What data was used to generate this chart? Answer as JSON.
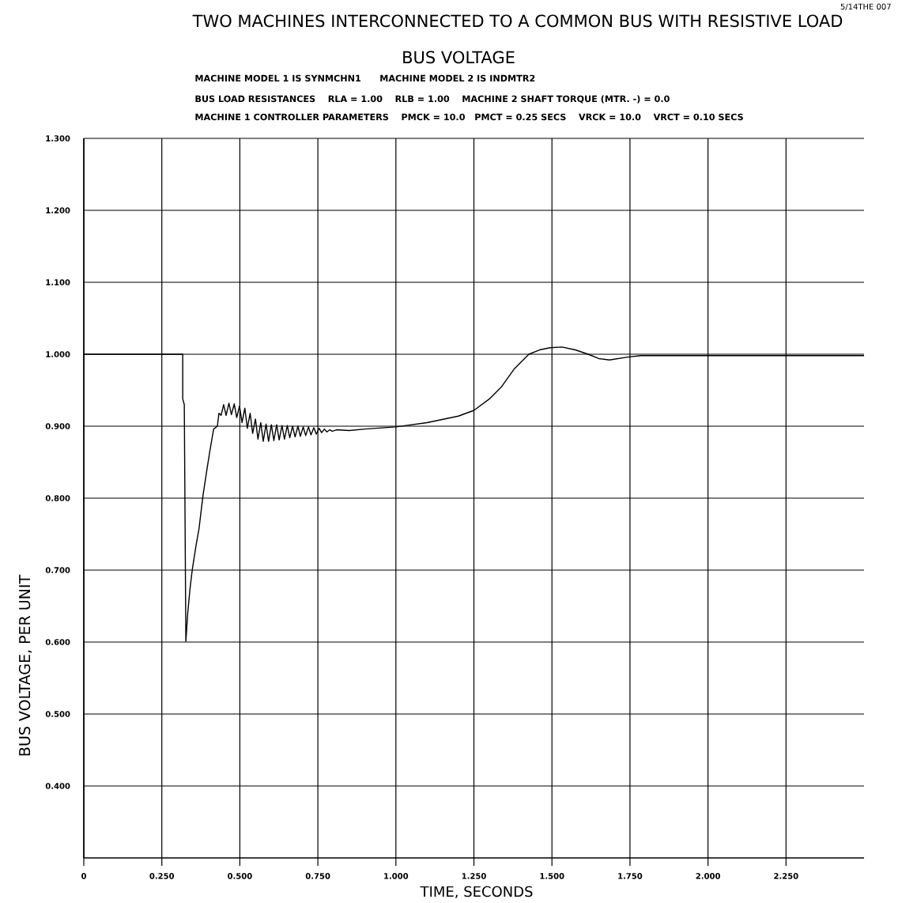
{
  "chart_data": {
    "type": "line",
    "title": "TWO MACHINES INTERCONNECTED TO A COMMON BUS WITH RESISTIVE LOAD",
    "subtitle": "BUS VOLTAGE",
    "annotations": [
      "MACHINE MODEL 1 IS SYNMCHN1      MACHINE MODEL 2 IS INDMTR2",
      "BUS LOAD RESISTANCES    RLA = 1.00    RLB = 1.00    MACHINE 2 SHAFT TORQUE (MTR. -) = 0.0",
      "MACHINE 1 CONTROLLER PARAMETERS    PMCK = 10.0   PMCT = 0.25 SECS    VRCK = 10.0    VRCT = 0.10 SECS",
      "5/14THE 007"
    ],
    "xlabel": "TIME, SECONDS",
    "ylabel": "BUS VOLTAGE, PER UNIT",
    "xlim": [
      0,
      2.5
    ],
    "ylim": [
      0.3,
      1.3
    ],
    "xticks": [
      {
        "value": 0,
        "label": "0"
      },
      {
        "value": 0.25,
        "label": "0.250"
      },
      {
        "value": 0.5,
        "label": "0.500"
      },
      {
        "value": 0.75,
        "label": "0.750"
      },
      {
        "value": 1.0,
        "label": "1.000"
      },
      {
        "value": 1.25,
        "label": "1.250"
      },
      {
        "value": 1.5,
        "label": "1.500"
      },
      {
        "value": 1.75,
        "label": "1.750"
      },
      {
        "value": 2.0,
        "label": "2.000"
      },
      {
        "value": 2.25,
        "label": "2.250"
      }
    ],
    "yticks": [
      {
        "value": 0.4,
        "label": "0.400"
      },
      {
        "value": 0.5,
        "label": "0.500"
      },
      {
        "value": 0.6,
        "label": "0.600"
      },
      {
        "value": 0.7,
        "label": "0.700"
      },
      {
        "value": 0.8,
        "label": "0.800"
      },
      {
        "value": 0.9,
        "label": "0.900"
      },
      {
        "value": 1.0,
        "label": "1.000"
      },
      {
        "value": 1.1,
        "label": "1.100"
      },
      {
        "value": 1.2,
        "label": "1.200"
      },
      {
        "value": 1.3,
        "label": "1.300"
      }
    ],
    "grid": true,
    "marker": "none",
    "line_style": "solid",
    "series": [
      {
        "color": "#000000",
        "x": [
          0,
          0.317,
          0.317,
          0.322,
          0.327,
          0.333,
          0.34,
          0.348,
          0.36,
          0.369,
          0.382,
          0.395,
          0.403,
          0.416,
          0.428,
          0.433,
          0.44,
          0.448,
          0.456,
          0.465,
          0.473,
          0.482,
          0.49,
          0.499,
          0.507,
          0.516,
          0.524,
          0.533,
          0.541,
          0.55,
          0.558,
          0.567,
          0.575,
          0.584,
          0.592,
          0.601,
          0.609,
          0.618,
          0.626,
          0.635,
          0.643,
          0.652,
          0.66,
          0.669,
          0.677,
          0.686,
          0.694,
          0.703,
          0.711,
          0.72,
          0.728,
          0.737,
          0.745,
          0.754,
          0.762,
          0.771,
          0.779,
          0.788,
          0.796,
          0.81,
          0.85,
          0.9,
          1.0,
          1.1,
          1.2,
          1.25,
          1.3,
          1.337,
          1.38,
          1.426,
          1.46,
          1.494,
          1.532,
          1.575,
          1.616,
          1.65,
          1.684,
          1.742,
          1.785,
          2.0,
          2.5
        ],
        "values": [
          1.0,
          1.0,
          0.938,
          0.93,
          0.601,
          0.64,
          0.673,
          0.702,
          0.735,
          0.757,
          0.804,
          0.841,
          0.863,
          0.896,
          0.9,
          0.918,
          0.915,
          0.93,
          0.915,
          0.932,
          0.916,
          0.931,
          0.912,
          0.928,
          0.905,
          0.925,
          0.897,
          0.918,
          0.89,
          0.91,
          0.882,
          0.905,
          0.879,
          0.903,
          0.879,
          0.902,
          0.88,
          0.902,
          0.881,
          0.901,
          0.882,
          0.901,
          0.884,
          0.9,
          0.885,
          0.9,
          0.886,
          0.899,
          0.887,
          0.899,
          0.888,
          0.898,
          0.889,
          0.897,
          0.891,
          0.896,
          0.892,
          0.895,
          0.893,
          0.895,
          0.894,
          0.896,
          0.899,
          0.905,
          0.914,
          0.922,
          0.938,
          0.954,
          0.98,
          1.0,
          1.006,
          1.009,
          1.01,
          1.006,
          1.0,
          0.994,
          0.992,
          0.996,
          0.998,
          0.998,
          0.998
        ]
      }
    ]
  }
}
